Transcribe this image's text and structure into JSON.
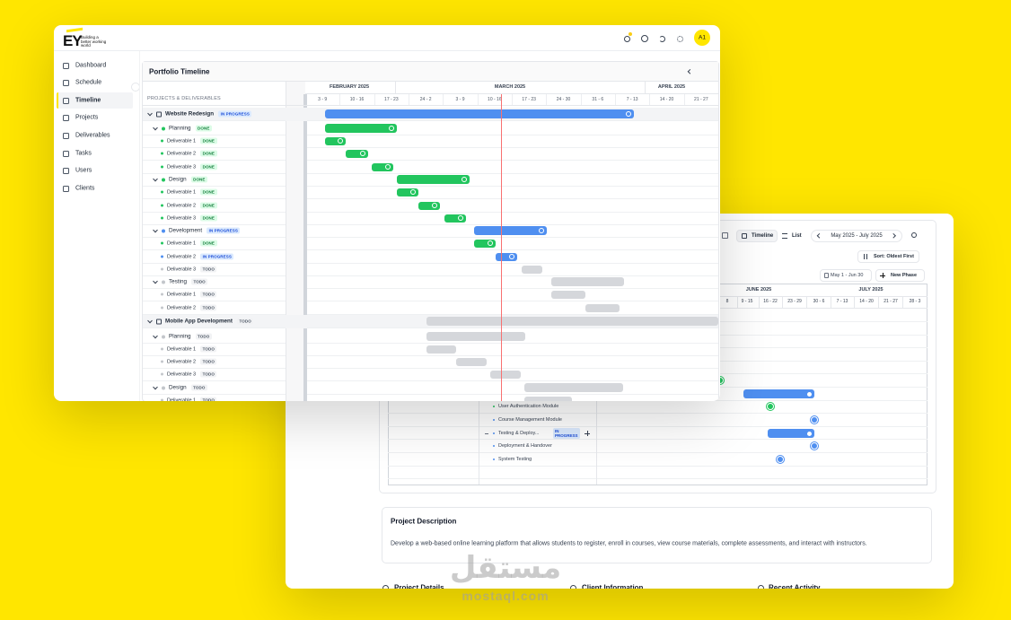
{
  "brand": {
    "logo": "EY",
    "tagline": "Building a better working world"
  },
  "nav": [
    "Dashboard",
    "Schedule",
    "Timeline",
    "Projects",
    "Deliverables",
    "Tasks",
    "Users",
    "Clients"
  ],
  "user": {
    "avatar": "A1"
  },
  "portfolio": {
    "title": "Portfolio Timeline",
    "column_header": "PROJECTS & DELIVERABLES",
    "months": [
      "FEBRUARY 2025",
      "MARCH 2025",
      "APRIL 2025"
    ],
    "weeks": [
      "3 - 9",
      "10 - 16",
      "17 - 23",
      "24 - 2",
      "3 - 9",
      "10 - 16",
      "17 - 23",
      "24 - 30",
      "31 - 6",
      "7 - 13",
      "14 - 20",
      "21 - 27"
    ],
    "projects": [
      {
        "name": "Website Redesign",
        "status": "IN PROGRESS",
        "phases": [
          {
            "name": "Planning",
            "status": "DONE",
            "deliverables": [
              {
                "name": "Deliverable 1",
                "status": "DONE"
              },
              {
                "name": "Deliverable 2",
                "status": "DONE"
              },
              {
                "name": "Deliverable 3",
                "status": "DONE"
              }
            ]
          },
          {
            "name": "Design",
            "status": "DONE",
            "deliverables": [
              {
                "name": "Deliverable 1",
                "status": "DONE"
              },
              {
                "name": "Deliverable 2",
                "status": "DONE"
              },
              {
                "name": "Deliverable 3",
                "status": "DONE"
              }
            ]
          },
          {
            "name": "Development",
            "status": "IN PROGRESS",
            "deliverables": [
              {
                "name": "Deliverable 1",
                "status": "DONE"
              },
              {
                "name": "Deliverable 2",
                "status": "IN PROGRESS"
              },
              {
                "name": "Deliverable 3",
                "status": "TODO"
              }
            ]
          },
          {
            "name": "Testing",
            "status": "TODO",
            "deliverables": [
              {
                "name": "Deliverable 1",
                "status": "TODO"
              },
              {
                "name": "Deliverable 2",
                "status": "TODO"
              }
            ]
          }
        ]
      },
      {
        "name": "Mobile App Development",
        "status": "TODO",
        "phases": [
          {
            "name": "Planning",
            "status": "TODO",
            "deliverables": [
              {
                "name": "Deliverable 1",
                "status": "TODO"
              },
              {
                "name": "Deliverable 2",
                "status": "TODO"
              },
              {
                "name": "Deliverable 3",
                "status": "TODO"
              }
            ]
          },
          {
            "name": "Design",
            "status": "TODO",
            "deliverables": [
              {
                "name": "Deliverable 1",
                "status": "TODO"
              }
            ]
          }
        ]
      }
    ]
  },
  "project_view": {
    "views": [
      "Timeline",
      "List"
    ],
    "range": "May 2025 - July 2025",
    "sort": "Sort: Oldest First",
    "phase_range": "May 1 - Jun 30",
    "new_phase": "New Phase",
    "months": [
      "JUNE 2025",
      "JULY 2025"
    ],
    "weeks": [
      "8",
      "9 - 15",
      "16 - 22",
      "23 - 29",
      "30 - 6",
      "7 - 13",
      "14 - 20",
      "21 - 27",
      "28 - 3"
    ],
    "rows": [
      {
        "name": "User Authentication Module"
      },
      {
        "name": "Course Management Module"
      },
      {
        "name": "Testing & Deploy...",
        "status": "IN PROGRESS"
      },
      {
        "name": "Deployment & Handover"
      },
      {
        "name": "System Testing"
      }
    ],
    "description": {
      "title": "Project Description",
      "text": "Develop a web-based online learning platform that allows students to register, enroll in courses, view course materials, complete assessments, and interact with instructors."
    },
    "sections": [
      "Project Details",
      "Client Information",
      "Recent Activity"
    ]
  },
  "watermark": {
    "arabic": "مستقل",
    "latin": "mostaql.com"
  }
}
